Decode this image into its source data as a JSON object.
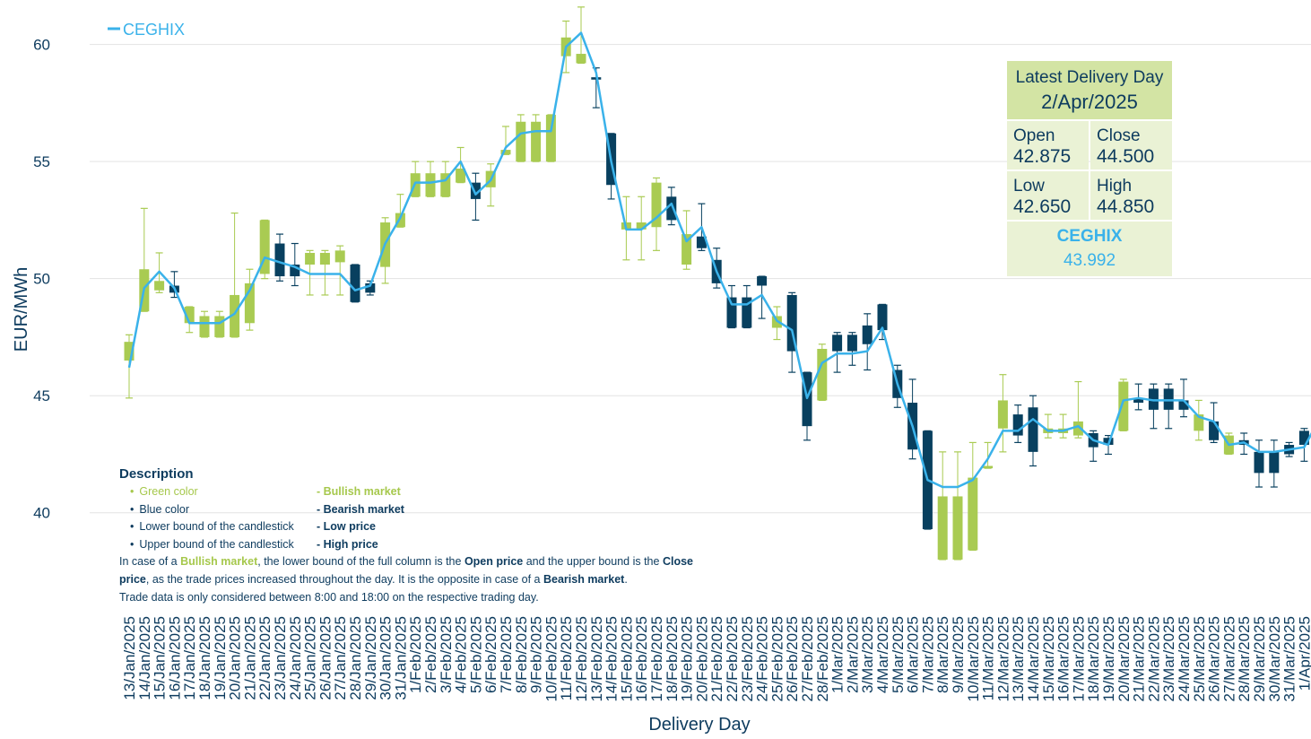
{
  "chart_data": {
    "type": "candlestick",
    "xlabel": "Delivery Day",
    "ylabel": "EUR/MWh",
    "ylim": [
      35.7,
      61.9
    ],
    "yticks": [
      40,
      45,
      50,
      55,
      60
    ],
    "grid": true,
    "bull_color": "#a9cb52",
    "bear_color": "#08405f",
    "categories": [
      "13/Jan/2025",
      "14/Jan/2025",
      "15/Jan/2025",
      "16/Jan/2025",
      "17/Jan/2025",
      "18/Jan/2025",
      "19/Jan/2025",
      "20/Jan/2025",
      "21/Jan/2025",
      "22/Jan/2025",
      "23/Jan/2025",
      "24/Jan/2025",
      "25/Jan/2025",
      "26/Jan/2025",
      "27/Jan/2025",
      "28/Jan/2025",
      "29/Jan/2025",
      "30/Jan/2025",
      "31/Jan/2025",
      "1/Feb/2025",
      "2/Feb/2025",
      "3/Feb/2025",
      "4/Feb/2025",
      "5/Feb/2025",
      "6/Feb/2025",
      "7/Feb/2025",
      "8/Feb/2025",
      "9/Feb/2025",
      "10/Feb/2025",
      "11/Feb/2025",
      "12/Feb/2025",
      "13/Feb/2025",
      "14/Feb/2025",
      "15/Feb/2025",
      "16/Feb/2025",
      "17/Feb/2025",
      "18/Feb/2025",
      "19/Feb/2025",
      "20/Feb/2025",
      "21/Feb/2025",
      "22/Feb/2025",
      "23/Feb/2025",
      "24/Feb/2025",
      "25/Feb/2025",
      "26/Feb/2025",
      "27/Feb/2025",
      "28/Feb/2025",
      "1/Mar/2025",
      "2/Mar/2025",
      "3/Mar/2025",
      "4/Mar/2025",
      "5/Mar/2025",
      "6/Mar/2025",
      "7/Mar/2025",
      "8/Mar/2025",
      "9/Mar/2025",
      "10/Mar/2025",
      "11/Mar/2025",
      "12/Mar/2025",
      "13/Mar/2025",
      "14/Mar/2025",
      "15/Mar/2025",
      "16/Mar/2025",
      "17/Mar/2025",
      "18/Mar/2025",
      "19/Mar/2025",
      "20/Mar/2025",
      "21/Mar/2025",
      "22/Mar/2025",
      "23/Mar/2025",
      "24/Mar/2025",
      "25/Mar/2025",
      "26/Mar/2025",
      "27/Mar/2025",
      "28/Mar/2025",
      "29/Mar/2025",
      "30/Mar/2025",
      "31/Mar/2025",
      "1/Apr/2025",
      "2/Apr/2025"
    ],
    "candles": {
      "open": [
        46.5,
        48.6,
        49.5,
        49.7,
        48.1,
        47.5,
        47.5,
        47.5,
        48.1,
        50.2,
        51.5,
        50.6,
        50.6,
        50.6,
        50.7,
        50.6,
        49.8,
        50.5,
        52.2,
        53.5,
        53.5,
        53.5,
        54.1,
        54.1,
        53.9,
        55.3,
        55.0,
        55.0,
        55.0,
        59.5,
        59.2,
        58.6,
        56.2,
        52.1,
        52.1,
        52.2,
        53.5,
        50.6,
        51.8,
        50.8,
        49.2,
        49.2,
        50.1,
        47.9,
        49.3,
        46.0,
        44.8,
        47.6,
        47.6,
        48.0,
        48.9,
        46.1,
        44.7,
        43.5,
        38.0,
        38.0,
        38.4,
        41.9,
        43.6,
        44.2,
        44.5,
        43.4,
        43.4,
        43.3,
        43.4,
        43.2,
        43.5,
        44.9,
        45.3,
        45.3,
        44.8,
        43.5,
        43.9,
        42.5,
        43.1,
        42.6,
        42.6,
        42.9,
        43.5,
        42.875
      ],
      "high": [
        47.6,
        53.0,
        51.1,
        50.3,
        48.8,
        48.6,
        48.6,
        52.8,
        50.4,
        52.5,
        51.9,
        51.5,
        51.2,
        51.2,
        51.4,
        50.6,
        49.9,
        52.6,
        53.6,
        55.0,
        55.0,
        55.0,
        55.6,
        54.5,
        54.9,
        56.5,
        57.0,
        57.0,
        57.0,
        61.0,
        61.6,
        59.0,
        56.2,
        53.5,
        53.5,
        54.3,
        53.9,
        52.9,
        53.2,
        51.3,
        49.7,
        49.7,
        50.1,
        48.8,
        49.4,
        46.0,
        47.2,
        47.7,
        47.7,
        48.5,
        48.9,
        46.3,
        45.7,
        43.5,
        42.6,
        42.6,
        43.0,
        43.0,
        45.9,
        44.6,
        45.0,
        44.2,
        44.2,
        45.6,
        43.5,
        43.3,
        45.7,
        45.5,
        45.5,
        45.5,
        45.7,
        44.8,
        44.7,
        43.4,
        43.4,
        43.1,
        43.1,
        43.0,
        43.6,
        44.85
      ],
      "low": [
        44.9,
        48.6,
        49.4,
        49.2,
        47.7,
        47.5,
        47.5,
        47.5,
        47.8,
        50.0,
        49.9,
        49.7,
        49.3,
        49.3,
        49.3,
        49.0,
        49.3,
        49.8,
        52.2,
        53.5,
        53.5,
        53.5,
        54.1,
        52.5,
        53.1,
        55.3,
        55.0,
        55.0,
        55.0,
        58.8,
        59.2,
        57.3,
        53.4,
        50.8,
        50.8,
        51.2,
        52.3,
        50.4,
        51.2,
        49.6,
        47.9,
        47.9,
        48.3,
        47.4,
        46.0,
        43.1,
        44.8,
        46.0,
        46.3,
        46.1,
        47.4,
        44.5,
        42.3,
        39.3,
        38.0,
        38.0,
        38.4,
        41.9,
        42.6,
        43.0,
        42.0,
        43.2,
        43.2,
        43.2,
        42.2,
        42.5,
        43.5,
        44.4,
        43.6,
        43.6,
        44.1,
        43.1,
        43.0,
        42.5,
        42.5,
        41.1,
        41.1,
        42.4,
        42.2,
        42.65
      ],
      "close": [
        47.3,
        50.4,
        49.9,
        49.4,
        48.8,
        48.4,
        48.4,
        49.3,
        49.8,
        52.5,
        50.1,
        50.1,
        51.1,
        51.1,
        51.2,
        49.0,
        49.4,
        52.4,
        52.8,
        54.5,
        54.5,
        54.5,
        54.7,
        53.4,
        54.6,
        55.5,
        56.7,
        56.7,
        57.0,
        60.3,
        59.6,
        58.5,
        54.0,
        52.4,
        52.4,
        54.1,
        52.5,
        51.9,
        51.3,
        49.8,
        47.9,
        47.9,
        49.7,
        48.4,
        46.9,
        43.7,
        47.0,
        46.9,
        46.9,
        47.2,
        47.8,
        44.9,
        42.7,
        39.3,
        40.7,
        40.7,
        41.5,
        42.0,
        44.8,
        43.3,
        42.6,
        43.6,
        43.6,
        43.9,
        42.8,
        42.9,
        45.6,
        44.7,
        44.4,
        44.4,
        44.4,
        44.2,
        43.1,
        43.3,
        42.9,
        41.7,
        41.7,
        42.5,
        42.9,
        44.5
      ]
    },
    "series": [
      {
        "name": "CEGHIX",
        "color": "#3ab2ea",
        "values": [
          46.2,
          49.6,
          50.3,
          49.6,
          48.1,
          48.1,
          48.1,
          48.5,
          49.5,
          50.9,
          50.7,
          50.5,
          50.2,
          50.2,
          50.2,
          49.5,
          49.7,
          51.5,
          52.6,
          54.1,
          54.1,
          54.2,
          55.0,
          53.6,
          54.2,
          55.6,
          56.2,
          56.3,
          56.3,
          59.9,
          60.5,
          58.8,
          55.0,
          52.1,
          52.1,
          52.6,
          53.2,
          51.6,
          52.2,
          50.3,
          48.9,
          48.9,
          49.3,
          48.2,
          47.8,
          44.9,
          46.4,
          46.8,
          46.8,
          46.9,
          47.9,
          45.5,
          43.7,
          41.4,
          41.1,
          41.1,
          41.4,
          42.3,
          43.5,
          43.5,
          44.0,
          43.5,
          43.5,
          43.7,
          43.1,
          42.9,
          44.8,
          44.9,
          44.8,
          44.8,
          44.8,
          44.1,
          43.9,
          42.9,
          43.0,
          42.6,
          42.6,
          42.7,
          42.8,
          43.992
        ]
      }
    ],
    "info_box": {
      "title": "Latest Delivery Day",
      "date": "2/Apr/2025",
      "fields": [
        {
          "label": "Open",
          "value": "42.875"
        },
        {
          "label": "Close",
          "value": "44.500"
        },
        {
          "label": "Low",
          "value": "42.650"
        },
        {
          "label": "High",
          "value": "44.850"
        }
      ],
      "index_name": "CEGHIX",
      "index_value": "43.992"
    },
    "description": {
      "title": "Description",
      "items": [
        {
          "term": "Green color",
          "meaning": "- Bullish market",
          "style": "bull"
        },
        {
          "term": "Blue color",
          "meaning": "- Bearish market"
        },
        {
          "term": "Lower bound of the candlestick",
          "meaning": "- Low price"
        },
        {
          "term": "Upper bound of the candlestick",
          "meaning": "- High price"
        }
      ],
      "paragraph": [
        {
          "text": "In case of a "
        },
        {
          "text": "Bullish market",
          "style": "bull"
        },
        {
          "text": ", the lower bound of the full column is the "
        },
        {
          "text": "Open price",
          "style": "bold"
        },
        {
          "text": " and the upper bound is the "
        },
        {
          "text": "Close price",
          "style": "bold"
        },
        {
          "text": ", as the trade prices increased throughout the day. It is the opposite in case of a "
        },
        {
          "text": "Bearish market",
          "style": "bold"
        },
        {
          "text": "."
        }
      ],
      "note": "Trade data is only considered between 8:00 and 18:00 on the respective trading day."
    }
  }
}
